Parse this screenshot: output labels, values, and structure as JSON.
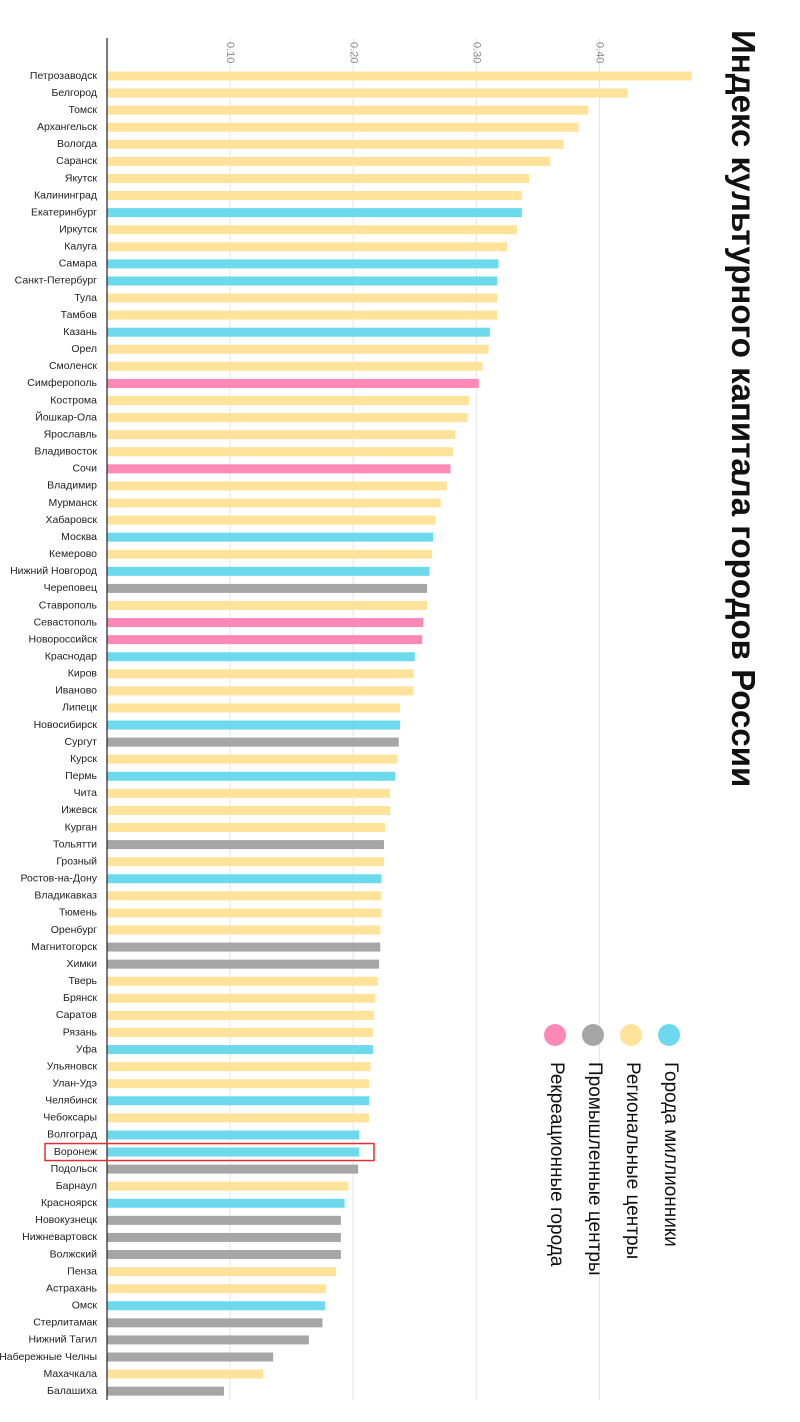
{
  "chart_data": {
    "type": "bar",
    "orientation": "horizontal",
    "title": "Индекс культурного капитала городов России",
    "xlim": [
      0,
      0.48
    ],
    "ticks": [
      0.1,
      0.2,
      0.3,
      0.4
    ],
    "tick_labels": [
      "0.10",
      "0.20",
      "0.30",
      "0.40"
    ],
    "grid": true,
    "highlight": "Воронеж",
    "legend": [
      {
        "name": "Города миллионники",
        "color": "#6dd9ed"
      },
      {
        "name": "Региональные центры",
        "color": "#ffe39b"
      },
      {
        "name": "Промышленные центры",
        "color": "#a6a6a6"
      },
      {
        "name": "Рекреационные города",
        "color": "#ff88b6"
      }
    ],
    "categories": [
      "Петрозаводск",
      "Белгород",
      "Томск",
      "Архангельск",
      "Вологда",
      "Саранск",
      "Якутск",
      "Калининград",
      "Екатеринбург",
      "Иркутск",
      "Калуга",
      "Самара",
      "Санкт-Петербург",
      "Тула",
      "Тамбов",
      "Казань",
      "Орел",
      "Смоленск",
      "Симферополь",
      "Кострома",
      "Йошкар-Ола",
      "Ярославль",
      "Владивосток",
      "Сочи",
      "Владимир",
      "Мурманск",
      "Хабаровск",
      "Москва",
      "Кемерово",
      "Нижний Новгород",
      "Череповец",
      "Ставрополь",
      "Севастополь",
      "Новороссийск",
      "Краснодар",
      "Киров",
      "Иваново",
      "Липецк",
      "Новосибирск",
      "Сургут",
      "Курск",
      "Пермь",
      "Чита",
      "Ижевск",
      "Курган",
      "Тольятти",
      "Грозный",
      "Ростов-на-Дону",
      "Владикавказ",
      "Тюмень",
      "Оренбург",
      "Магнитогорск",
      "Химки",
      "Тверь",
      "Брянск",
      "Саратов",
      "Рязань",
      "Уфа",
      "Ульяновск",
      "Улан-Удэ",
      "Челябинск",
      "Чебоксары",
      "Волгоград",
      "Воронеж",
      "Подольск",
      "Барнаул",
      "Красноярск",
      "Новокузнецк",
      "Нижневартовск",
      "Волжский",
      "Пенза",
      "Астрахань",
      "Омск",
      "Стерлитамак",
      "Нижний Тагил",
      "Набережные Челны",
      "Махачкала",
      "Балашиха"
    ],
    "values": [
      0.475,
      0.423,
      0.391,
      0.383,
      0.371,
      0.36,
      0.343,
      0.337,
      0.337,
      0.333,
      0.325,
      0.318,
      0.317,
      0.317,
      0.317,
      0.311,
      0.31,
      0.305,
      0.302,
      0.294,
      0.293,
      0.283,
      0.281,
      0.279,
      0.276,
      0.271,
      0.267,
      0.265,
      0.264,
      0.262,
      0.26,
      0.26,
      0.257,
      0.256,
      0.25,
      0.249,
      0.249,
      0.238,
      0.238,
      0.237,
      0.236,
      0.234,
      0.23,
      0.23,
      0.226,
      0.225,
      0.225,
      0.223,
      0.223,
      0.223,
      0.222,
      0.222,
      0.221,
      0.22,
      0.218,
      0.217,
      0.216,
      0.216,
      0.214,
      0.213,
      0.213,
      0.213,
      0.205,
      0.205,
      0.204,
      0.196,
      0.193,
      0.19,
      0.19,
      0.19,
      0.186,
      0.178,
      0.177,
      0.175,
      0.164,
      0.135,
      0.127,
      0.095
    ],
    "groups": [
      1,
      1,
      1,
      1,
      1,
      1,
      1,
      1,
      0,
      1,
      1,
      0,
      0,
      1,
      1,
      0,
      1,
      1,
      3,
      1,
      1,
      1,
      1,
      3,
      1,
      1,
      1,
      0,
      1,
      0,
      2,
      1,
      3,
      3,
      0,
      1,
      1,
      1,
      0,
      2,
      1,
      0,
      1,
      1,
      1,
      2,
      1,
      0,
      1,
      1,
      1,
      2,
      2,
      1,
      1,
      1,
      1,
      0,
      1,
      1,
      0,
      1,
      0,
      0,
      2,
      1,
      0,
      2,
      2,
      2,
      1,
      1,
      0,
      2,
      2,
      2,
      1,
      2
    ]
  }
}
